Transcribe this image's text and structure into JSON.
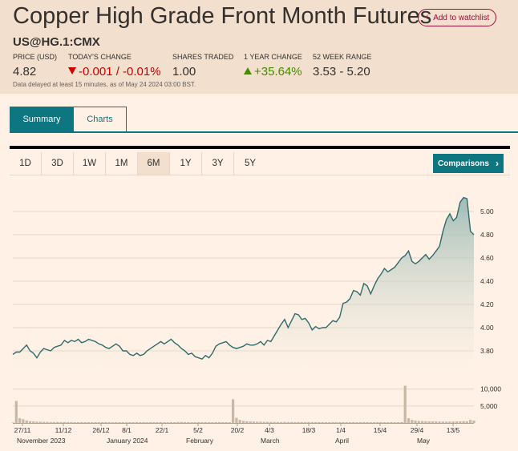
{
  "header": {
    "title": "Copper High Grade Front Month Futures",
    "watchlist_label": "Add to watchlist",
    "symbol": "US@HG.1:CMX",
    "stats": {
      "price_label": "PRICE (USD)",
      "price_value": "4.82",
      "change_label": "TODAY'S CHANGE",
      "change_value": "-0.001 / -0.01%",
      "shares_label": "SHARES TRADED",
      "shares_value": "1.00",
      "year_label": "1 YEAR CHANGE",
      "year_value": "+35.64%",
      "range_label": "52 WEEK RANGE",
      "range_value": "3.53 - 5.20"
    },
    "disclaimer": "Data delayed at least 15 minutes, as of May 24 2024 03:00 BST."
  },
  "tabs": [
    {
      "label": "Summary",
      "active": true
    },
    {
      "label": "Charts",
      "active": false
    }
  ],
  "periods": [
    {
      "label": "1D"
    },
    {
      "label": "3D"
    },
    {
      "label": "1W"
    },
    {
      "label": "1M"
    },
    {
      "label": "6M",
      "active": true
    },
    {
      "label": "1Y"
    },
    {
      "label": "3Y"
    },
    {
      "label": "5Y"
    }
  ],
  "comparisons_label": "Comparisons",
  "colors": {
    "accent": "#0d7680",
    "line": "#2e6b6b",
    "negative": "#cc0000",
    "positive": "#458b00",
    "volume": "#c9b7a6"
  },
  "chart_data": {
    "type": "area",
    "price_axis": {
      "ticks": [
        "3.80",
        "4.00",
        "4.20",
        "4.40",
        "4.60",
        "4.80",
        "5.00"
      ],
      "min": 3.6,
      "max": 5.2
    },
    "volume_axis": {
      "ticks": [
        "5,000",
        "10,000"
      ],
      "max": 13000
    },
    "date_ticks": [
      "27/11",
      "11/12",
      "26/12",
      "8/1",
      "22/1",
      "5/2",
      "20/2",
      "4/3",
      "18/3",
      "1/4",
      "15/4",
      "29/4",
      "13/5"
    ],
    "month_labels": [
      "November 2023",
      "January 2024",
      "February",
      "March",
      "April",
      "May"
    ],
    "price": [
      3.77,
      3.79,
      3.79,
      3.82,
      3.85,
      3.8,
      3.78,
      3.74,
      3.79,
      3.82,
      3.81,
      3.8,
      3.83,
      3.84,
      3.85,
      3.89,
      3.87,
      3.89,
      3.88,
      3.9,
      3.87,
      3.88,
      3.9,
      3.89,
      3.88,
      3.86,
      3.85,
      3.83,
      3.82,
      3.84,
      3.86,
      3.84,
      3.8,
      3.8,
      3.77,
      3.76,
      3.78,
      3.76,
      3.77,
      3.8,
      3.82,
      3.84,
      3.86,
      3.88,
      3.86,
      3.88,
      3.9,
      3.87,
      3.85,
      3.82,
      3.8,
      3.77,
      3.78,
      3.75,
      3.74,
      3.73,
      3.76,
      3.74,
      3.78,
      3.84,
      3.86,
      3.87,
      3.88,
      3.85,
      3.83,
      3.82,
      3.83,
      3.84,
      3.86,
      3.85,
      3.85,
      3.86,
      3.88,
      3.85,
      3.89,
      3.88,
      3.93,
      3.98,
      4.03,
      4.07,
      4.0,
      4.06,
      4.12,
      4.11,
      4.07,
      4.08,
      4.04,
      3.98,
      4.01,
      3.99,
      4.0,
      4.0,
      4.03,
      4.06,
      4.05,
      4.09,
      4.21,
      4.22,
      4.25,
      4.32,
      4.31,
      4.28,
      4.38,
      4.36,
      4.29,
      4.36,
      4.42,
      4.46,
      4.51,
      4.48,
      4.5,
      4.52,
      4.56,
      4.6,
      4.62,
      4.66,
      4.57,
      4.55,
      4.57,
      4.6,
      4.63,
      4.59,
      4.62,
      4.66,
      4.7,
      4.83,
      4.93,
      4.98,
      4.92,
      4.95,
      5.08,
      5.12,
      5.11,
      4.83,
      4.8
    ],
    "volume": [
      150,
      6500,
      1400,
      1100,
      700,
      500,
      450,
      380,
      350,
      300,
      320,
      280,
      260,
      300,
      270,
      290,
      250,
      260,
      230,
      240,
      250,
      240,
      260,
      230,
      250,
      240,
      230,
      260,
      240,
      220,
      250,
      230,
      240,
      220,
      260,
      230,
      250,
      240,
      230,
      220,
      240,
      250,
      230,
      260,
      240,
      220,
      250,
      240,
      300,
      280,
      260,
      250,
      240,
      230,
      260,
      240,
      250,
      230,
      240,
      260,
      250,
      240,
      230,
      220,
      7000,
      1500,
      900,
      600,
      500,
      450,
      400,
      380,
      350,
      330,
      320,
      300,
      310,
      290,
      280,
      300,
      270,
      290,
      260,
      280,
      270,
      260,
      280,
      250,
      260,
      270,
      250,
      260,
      240,
      250,
      260,
      240,
      250,
      260,
      240,
      250,
      230,
      240,
      260,
      250,
      240,
      230,
      250,
      260,
      240,
      220,
      250,
      240,
      230,
      260,
      11000,
      1400,
      900,
      700,
      600,
      550,
      500,
      480,
      460,
      440,
      420,
      400,
      380,
      400,
      420,
      440,
      460,
      500,
      480,
      900,
      700
    ]
  }
}
